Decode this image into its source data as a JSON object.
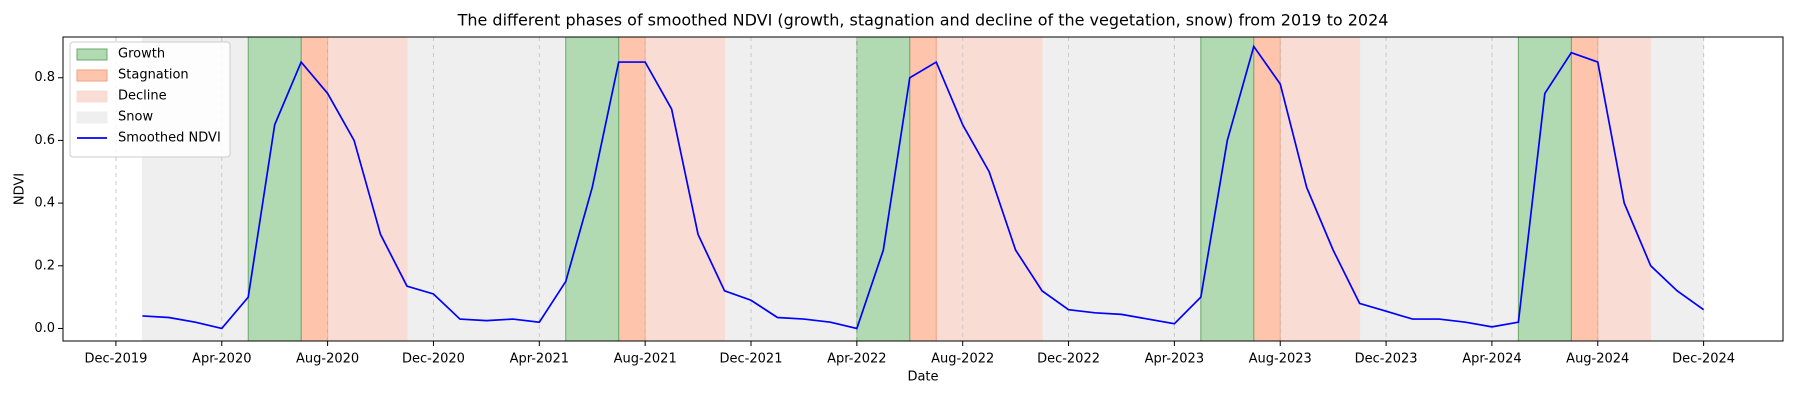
{
  "chart_data": {
    "type": "line",
    "title": "The different phases of smoothed NDVI (growth, stagnation and decline of the vegetation, snow) from 2019 to 2024",
    "x_label": "Date",
    "y_label": "NDVI",
    "x": [
      "2020-01",
      "2020-02",
      "2020-03",
      "2020-04",
      "2020-05",
      "2020-06",
      "2020-07",
      "2020-08",
      "2020-09",
      "2020-10",
      "2020-11",
      "2020-12",
      "2021-01",
      "2021-02",
      "2021-03",
      "2021-04",
      "2021-05",
      "2021-06",
      "2021-07",
      "2021-08",
      "2021-09",
      "2021-10",
      "2021-11",
      "2021-12",
      "2022-01",
      "2022-02",
      "2022-03",
      "2022-04",
      "2022-05",
      "2022-06",
      "2022-07",
      "2022-08",
      "2022-09",
      "2022-10",
      "2022-11",
      "2022-12",
      "2023-01",
      "2023-02",
      "2023-03",
      "2023-04",
      "2023-05",
      "2023-06",
      "2023-07",
      "2023-08",
      "2023-09",
      "2023-10",
      "2023-11",
      "2023-12",
      "2024-01",
      "2024-02",
      "2024-03",
      "2024-04",
      "2024-05",
      "2024-06",
      "2024-07",
      "2024-08",
      "2024-09",
      "2024-10",
      "2024-11",
      "2024-12"
    ],
    "series": [
      {
        "name": "Smoothed NDVI",
        "color": "#0000ff",
        "values": [
          0.04,
          0.035,
          0.02,
          0.0,
          0.1,
          0.65,
          0.85,
          0.75,
          0.6,
          0.3,
          0.135,
          0.11,
          0.03,
          0.025,
          0.03,
          0.02,
          0.15,
          0.45,
          0.85,
          0.85,
          0.7,
          0.3,
          0.12,
          0.09,
          0.035,
          0.03,
          0.02,
          0.0,
          0.25,
          0.8,
          0.85,
          0.65,
          0.5,
          0.25,
          0.12,
          0.06,
          0.05,
          0.045,
          0.03,
          0.015,
          0.1,
          0.6,
          0.9,
          0.78,
          0.45,
          0.25,
          0.08,
          0.055,
          0.03,
          0.03,
          0.02,
          0.005,
          0.02,
          0.75,
          0.88,
          0.85,
          0.4,
          0.2,
          0.12,
          0.06
        ]
      }
    ],
    "regions": [
      {
        "name": "Growth",
        "color": "#b2dab2",
        "edge": "#6aa86a",
        "spans": [
          [
            "2020-05",
            "2020-07"
          ],
          [
            "2021-05",
            "2021-07"
          ],
          [
            "2022-04",
            "2022-06"
          ],
          [
            "2023-05",
            "2023-07"
          ],
          [
            "2024-05",
            "2024-07"
          ]
        ]
      },
      {
        "name": "Stagnation",
        "color": "#ffc4ac",
        "edge": "#f0a080",
        "spans": [
          [
            "2020-07",
            "2020-08"
          ],
          [
            "2021-07",
            "2021-08"
          ],
          [
            "2022-06",
            "2022-07"
          ],
          [
            "2023-07",
            "2023-08"
          ],
          [
            "2024-07",
            "2024-08"
          ]
        ]
      },
      {
        "name": "Decline",
        "color": "#f9ddd5",
        "edge": "#f9ddd5",
        "spans": [
          [
            "2020-08",
            "2020-11"
          ],
          [
            "2021-08",
            "2021-11"
          ],
          [
            "2022-07",
            "2022-11"
          ],
          [
            "2023-08",
            "2023-11"
          ],
          [
            "2024-08",
            "2024-10"
          ]
        ]
      },
      {
        "name": "Snow",
        "color": "#efefef",
        "edge": "#efefef",
        "spans": [
          [
            "2020-01",
            "2020-05"
          ],
          [
            "2020-11",
            "2021-05"
          ],
          [
            "2021-11",
            "2022-04"
          ],
          [
            "2022-11",
            "2023-05"
          ],
          [
            "2023-11",
            "2024-05"
          ],
          [
            "2024-10",
            "2024-12"
          ]
        ]
      }
    ],
    "xlim": [
      "2019-10",
      "2025-03"
    ],
    "ylim": [
      -0.04,
      0.93
    ],
    "xticks": [
      {
        "value": "2019-12",
        "label": "Dec-2019"
      },
      {
        "value": "2020-04",
        "label": "Apr-2020"
      },
      {
        "value": "2020-08",
        "label": "Aug-2020"
      },
      {
        "value": "2020-12",
        "label": "Dec-2020"
      },
      {
        "value": "2021-04",
        "label": "Apr-2021"
      },
      {
        "value": "2021-08",
        "label": "Aug-2021"
      },
      {
        "value": "2021-12",
        "label": "Dec-2021"
      },
      {
        "value": "2022-04",
        "label": "Apr-2022"
      },
      {
        "value": "2022-08",
        "label": "Aug-2022"
      },
      {
        "value": "2022-12",
        "label": "Dec-2022"
      },
      {
        "value": "2023-04",
        "label": "Apr-2023"
      },
      {
        "value": "2023-08",
        "label": "Aug-2023"
      },
      {
        "value": "2023-12",
        "label": "Dec-2023"
      },
      {
        "value": "2024-04",
        "label": "Apr-2024"
      },
      {
        "value": "2024-08",
        "label": "Aug-2024"
      },
      {
        "value": "2024-12",
        "label": "Dec-2024"
      }
    ],
    "yticks": [
      {
        "value": 0,
        "label": "0.0"
      },
      0.2,
      0.4,
      0.6,
      0.8
    ],
    "grid": true,
    "legend": "upper left"
  }
}
